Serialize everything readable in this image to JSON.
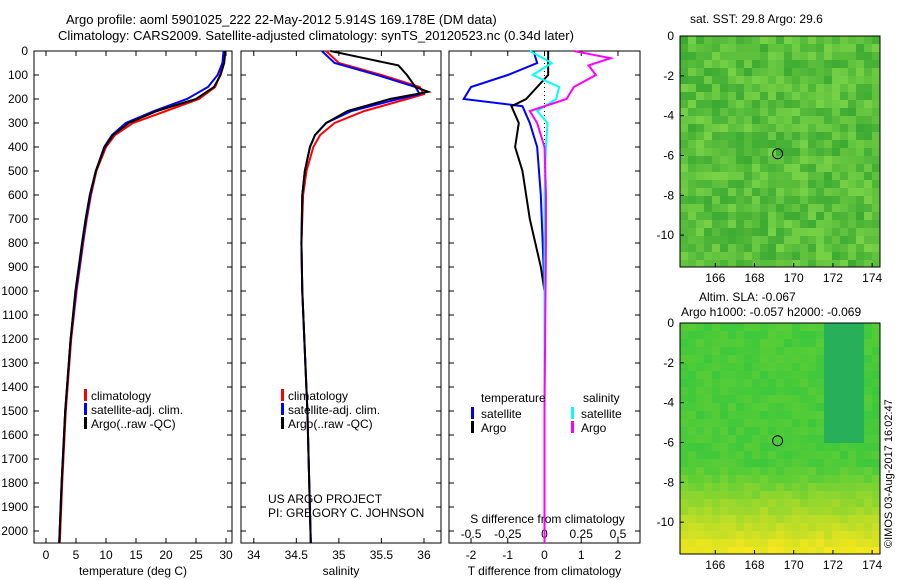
{
  "chart_data": [
    {
      "type": "line",
      "title": "Argo profile: aoml 5901025_222 22-May-2012 5.914S 169.178E (DM data)",
      "subtitle": "Climatology: CARS2009. Satellite-adjusted climatology: synTS_20120523.nc (0.34d later)",
      "xlabel": "temperature (deg C)",
      "xlim": [
        -2,
        31
      ],
      "xticks": [
        0,
        5,
        10,
        15,
        20,
        25,
        30
      ],
      "ylim": [
        2050,
        0
      ],
      "yticks": [
        0,
        100,
        200,
        300,
        400,
        500,
        600,
        700,
        800,
        900,
        1000,
        1100,
        1200,
        1300,
        1400,
        1500,
        1600,
        1700,
        1800,
        1900,
        2000
      ],
      "legend": [
        "climatology",
        "satellite-adj. clim.",
        "Argo(..raw -QC)"
      ],
      "series": [
        {
          "name": "climatology",
          "color": "#ff0000",
          "depth": [
            0,
            50,
            100,
            150,
            200,
            250,
            300,
            350,
            400,
            500,
            600,
            700,
            800,
            1000,
            1200,
            1500,
            1800,
            2050
          ],
          "values": [
            29.8,
            29.6,
            29.0,
            28.2,
            25.5,
            20,
            14.5,
            11.5,
            10,
            8.4,
            7.5,
            6.8,
            6.2,
            5.1,
            4.2,
            3.3,
            2.7,
            2.3
          ]
        },
        {
          "name": "satellite-adj. clim.",
          "color": "#0000ff",
          "depth": [
            0,
            50,
            100,
            150,
            200,
            250,
            300,
            350,
            400,
            500,
            600,
            700,
            800,
            1000,
            1200,
            1500,
            1800,
            2050
          ],
          "values": [
            29.6,
            29.4,
            28.6,
            27.0,
            23.5,
            18,
            13.3,
            11,
            9.7,
            8.3,
            7.4,
            6.7,
            6.1,
            5.0,
            4.1,
            3.2,
            2.6,
            2.2
          ]
        },
        {
          "name": "Argo(..raw -QC)",
          "color": "#000000",
          "depth": [
            0,
            50,
            100,
            150,
            200,
            250,
            300,
            350,
            400,
            500,
            600,
            700,
            800,
            1000,
            1200,
            1500,
            1800,
            2050
          ],
          "values": [
            29.9,
            29.7,
            29.1,
            28.0,
            25.0,
            18.5,
            13.8,
            11.2,
            9.8,
            8.3,
            7.3,
            6.6,
            6.0,
            4.9,
            4.1,
            3.2,
            2.6,
            2.2
          ]
        }
      ]
    },
    {
      "type": "line",
      "xlabel": "salinity",
      "xlim": [
        33.85,
        36.2
      ],
      "xticks": [
        34,
        34.5,
        35,
        35.5,
        36
      ],
      "legend": [
        "climatology",
        "satellite-adj. clim.",
        "Argo(..raw -QC)"
      ],
      "footer": [
        "US ARGO PROJECT",
        "PI: GREGORY C. JOHNSON"
      ],
      "series": [
        {
          "name": "climatology",
          "color": "#ff0000",
          "depth": [
            0,
            50,
            100,
            150,
            180,
            200,
            250,
            300,
            350,
            400,
            500,
            600,
            800,
            1000,
            1500,
            2050
          ],
          "values": [
            34.85,
            35.0,
            35.5,
            35.95,
            36.0,
            35.8,
            35.3,
            34.95,
            34.78,
            34.7,
            34.62,
            34.58,
            34.56,
            34.57,
            34.63,
            34.67
          ]
        },
        {
          "name": "satellite-adj. clim.",
          "color": "#0000ff",
          "depth": [
            0,
            50,
            100,
            150,
            180,
            200,
            250,
            300,
            350,
            400,
            500,
            600,
            800,
            1000,
            1500,
            2050
          ],
          "values": [
            34.8,
            34.95,
            35.45,
            35.9,
            35.95,
            35.7,
            35.15,
            34.85,
            34.72,
            34.66,
            34.6,
            34.57,
            34.56,
            34.57,
            34.63,
            34.67
          ]
        },
        {
          "name": "Argo(..raw -QC)",
          "color": "#000000",
          "depth": [
            0,
            30,
            60,
            100,
            150,
            170,
            200,
            250,
            300,
            350,
            400,
            500,
            600,
            800,
            1000,
            1500,
            2050
          ],
          "values": [
            34.9,
            35.3,
            35.7,
            35.8,
            35.9,
            36.05,
            35.6,
            35.1,
            34.85,
            34.72,
            34.66,
            34.6,
            34.57,
            34.56,
            34.57,
            34.63,
            34.67
          ]
        }
      ]
    },
    {
      "type": "line",
      "xlabel": "T difference from climatology",
      "x2label": "S difference from climatology",
      "xlim": [
        -2.6,
        2.6
      ],
      "xticks": [
        -2,
        -1,
        0,
        1,
        2
      ],
      "x2ticks": [
        -0.5,
        -0.25,
        0,
        0.25,
        0.5
      ],
      "legend_titles": [
        "temperature",
        "salinity"
      ],
      "legend": [
        "satellite",
        "Argo",
        "satellite",
        "Argo"
      ],
      "series": [
        {
          "name": "temperature satellite",
          "color": "#0000ff",
          "depth": [
            0,
            50,
            100,
            150,
            200,
            230,
            300,
            400,
            600,
            800,
            1000,
            1500,
            2050
          ],
          "values": [
            -0.3,
            -0.2,
            -1.0,
            -2.0,
            -2.2,
            -0.6,
            -0.4,
            -0.2,
            -0.1,
            -0.05,
            0,
            0,
            0
          ]
        },
        {
          "name": "temperature Argo",
          "color": "#000000",
          "depth": [
            0,
            50,
            100,
            150,
            200,
            230,
            300,
            400,
            500,
            700,
            900,
            1000,
            1500,
            2050
          ],
          "values": [
            0.1,
            0.1,
            0.1,
            -0.2,
            -0.5,
            -0.9,
            -0.7,
            -0.8,
            -0.6,
            -0.4,
            -0.1,
            0,
            0,
            0
          ]
        },
        {
          "name": "salinity satellite",
          "color": "#00ffff",
          "depth": [
            0,
            50,
            100,
            150,
            200,
            250,
            300,
            400,
            600,
            800,
            1500,
            2050
          ],
          "values": [
            -0.1,
            0.05,
            -0.08,
            0.1,
            0.08,
            -0.05,
            0.02,
            0.01,
            0,
            0,
            0,
            0
          ]
        },
        {
          "name": "salinity Argo",
          "color": "#ff00ff",
          "depth": [
            0,
            30,
            60,
            100,
            150,
            200,
            250,
            300,
            400,
            600,
            800,
            1500,
            2050
          ],
          "values": [
            0.2,
            0.45,
            0.3,
            0.35,
            0.2,
            0.15,
            -0.1,
            -0.05,
            0,
            0.01,
            0.01,
            0,
            0
          ]
        }
      ]
    },
    {
      "type": "heatmap",
      "title": "sat. SST: 29.8 Argo: 29.6",
      "xlim": [
        164.2,
        174.4
      ],
      "ylim": [
        -11.6,
        0
      ],
      "xticks": [
        166,
        168,
        170,
        172,
        174
      ],
      "yticks": [
        0,
        -2,
        -4,
        -6,
        -8,
        -10
      ],
      "marker": [
        169.178,
        -5.914
      ]
    },
    {
      "type": "heatmap",
      "title": "Altim. SLA: -0.067",
      "subtitle": "Argo h1000: -0.057 h2000: -0.069",
      "xlim": [
        164.2,
        174.4
      ],
      "ylim": [
        -11.6,
        0
      ],
      "xticks": [
        166,
        168,
        170,
        172,
        174
      ],
      "yticks": [
        0,
        -2,
        -4,
        -6,
        -8,
        -10
      ],
      "marker": [
        169.178,
        -5.914
      ]
    }
  ],
  "credit": "©IMOS 03-Aug-2017 16:02:47"
}
